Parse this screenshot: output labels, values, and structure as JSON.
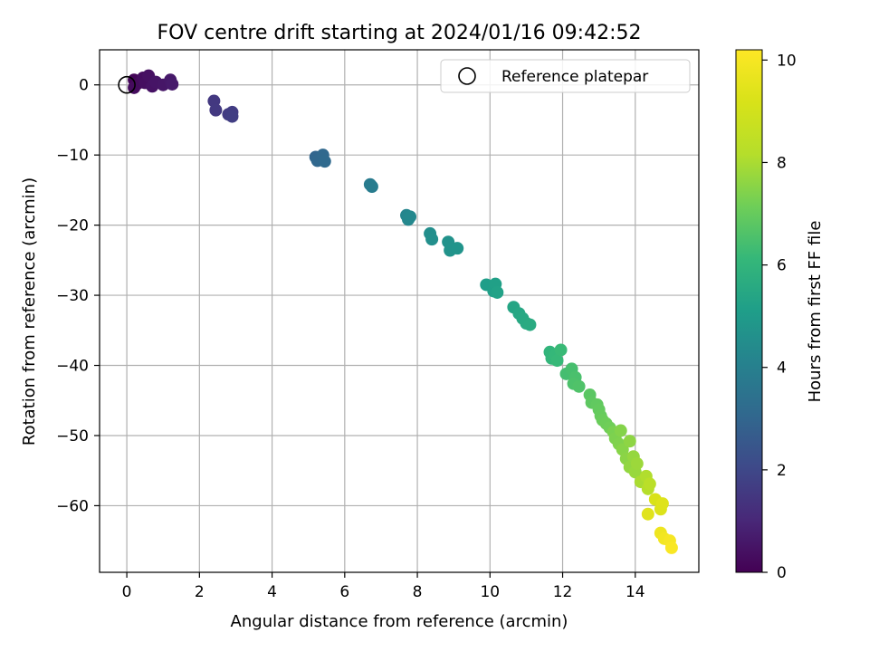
{
  "chart_data": {
    "type": "scatter",
    "title": "FOV centre drift starting at 2024/01/16 09:42:52",
    "xlabel": "Angular distance from reference (arcmin)",
    "ylabel": "Rotation from reference (arcmin)",
    "xlim": [
      -0.75,
      15.75
    ],
    "ylim": [
      -69.5,
      5
    ],
    "xticks": [
      "0",
      "2",
      "4",
      "6",
      "8",
      "10",
      "12",
      "14"
    ],
    "yticks": [
      "0",
      "−10",
      "−20",
      "−30",
      "−40",
      "−50",
      "−60"
    ],
    "grid": true,
    "legend": {
      "placement": "top-right",
      "entries": [
        "Reference platepar"
      ]
    },
    "reference_point": {
      "x": 0,
      "y": 0
    },
    "colorbar": {
      "label": "Hours from first FF file",
      "range": [
        0,
        10.2
      ],
      "ticks": [
        "0",
        "2",
        "4",
        "6",
        "8",
        "10"
      ],
      "colormap": "viridis"
    },
    "points": [
      {
        "x": 0.2,
        "y": 0.7,
        "c": 0.1
      },
      {
        "x": 0.3,
        "y": 0.2,
        "c": 0.2
      },
      {
        "x": 0.2,
        "y": -0.4,
        "c": 0.25
      },
      {
        "x": 0.45,
        "y": 1.0,
        "c": 0.3
      },
      {
        "x": 0.5,
        "y": 0.3,
        "c": 0.35
      },
      {
        "x": 0.6,
        "y": 1.3,
        "c": 0.4
      },
      {
        "x": 0.7,
        "y": -0.2,
        "c": 0.45
      },
      {
        "x": 0.8,
        "y": 0.4,
        "c": 0.5
      },
      {
        "x": 1.0,
        "y": 0.0,
        "c": 0.55
      },
      {
        "x": 1.2,
        "y": 0.7,
        "c": 0.6
      },
      {
        "x": 1.25,
        "y": 0.1,
        "c": 0.65
      },
      {
        "x": 2.4,
        "y": -2.3,
        "c": 1.5
      },
      {
        "x": 2.45,
        "y": -3.6,
        "c": 1.55
      },
      {
        "x": 2.8,
        "y": -4.2,
        "c": 1.6
      },
      {
        "x": 2.9,
        "y": -3.9,
        "c": 1.65
      },
      {
        "x": 2.9,
        "y": -4.5,
        "c": 1.7
      },
      {
        "x": 5.2,
        "y": -10.3,
        "c": 3.0
      },
      {
        "x": 5.25,
        "y": -10.8,
        "c": 3.05
      },
      {
        "x": 5.4,
        "y": -10.0,
        "c": 3.1
      },
      {
        "x": 5.45,
        "y": -10.9,
        "c": 3.15
      },
      {
        "x": 6.7,
        "y": -14.2,
        "c": 3.8
      },
      {
        "x": 6.75,
        "y": -14.5,
        "c": 3.85
      },
      {
        "x": 7.7,
        "y": -18.6,
        "c": 4.2
      },
      {
        "x": 7.75,
        "y": -19.2,
        "c": 4.25
      },
      {
        "x": 7.8,
        "y": -18.8,
        "c": 4.3
      },
      {
        "x": 8.35,
        "y": -21.2,
        "c": 4.5
      },
      {
        "x": 8.4,
        "y": -22.0,
        "c": 4.55
      },
      {
        "x": 8.85,
        "y": -22.4,
        "c": 4.65
      },
      {
        "x": 8.9,
        "y": -23.6,
        "c": 4.7
      },
      {
        "x": 9.1,
        "y": -23.3,
        "c": 4.75
      },
      {
        "x": 9.9,
        "y": -28.5,
        "c": 5.1
      },
      {
        "x": 10.1,
        "y": -29.4,
        "c": 5.15
      },
      {
        "x": 10.15,
        "y": -28.4,
        "c": 5.2
      },
      {
        "x": 10.2,
        "y": -29.6,
        "c": 5.25
      },
      {
        "x": 10.65,
        "y": -31.7,
        "c": 5.4
      },
      {
        "x": 10.8,
        "y": -32.6,
        "c": 5.45
      },
      {
        "x": 10.9,
        "y": -33.3,
        "c": 5.5
      },
      {
        "x": 11.0,
        "y": -34.0,
        "c": 5.55
      },
      {
        "x": 11.1,
        "y": -34.2,
        "c": 5.6
      },
      {
        "x": 11.65,
        "y": -38.1,
        "c": 6.0
      },
      {
        "x": 11.7,
        "y": -39.0,
        "c": 6.05
      },
      {
        "x": 11.8,
        "y": -38.5,
        "c": 6.1
      },
      {
        "x": 11.85,
        "y": -39.3,
        "c": 6.15
      },
      {
        "x": 11.95,
        "y": -37.8,
        "c": 6.2
      },
      {
        "x": 12.1,
        "y": -41.2,
        "c": 6.4
      },
      {
        "x": 12.25,
        "y": -40.5,
        "c": 6.45
      },
      {
        "x": 12.35,
        "y": -41.7,
        "c": 6.5
      },
      {
        "x": 12.3,
        "y": -42.6,
        "c": 6.55
      },
      {
        "x": 12.45,
        "y": -43.0,
        "c": 6.6
      },
      {
        "x": 12.75,
        "y": -44.2,
        "c": 6.8
      },
      {
        "x": 12.8,
        "y": -45.3,
        "c": 6.85
      },
      {
        "x": 12.95,
        "y": -45.6,
        "c": 6.9
      },
      {
        "x": 13.0,
        "y": -46.3,
        "c": 6.95
      },
      {
        "x": 13.05,
        "y": -47.2,
        "c": 7.0
      },
      {
        "x": 13.1,
        "y": -47.8,
        "c": 7.05
      },
      {
        "x": 13.2,
        "y": -48.3,
        "c": 7.1
      },
      {
        "x": 13.3,
        "y": -48.9,
        "c": 7.15
      },
      {
        "x": 13.4,
        "y": -49.5,
        "c": 7.3
      },
      {
        "x": 13.45,
        "y": -50.4,
        "c": 7.35
      },
      {
        "x": 13.55,
        "y": -51.2,
        "c": 7.4
      },
      {
        "x": 13.6,
        "y": -49.3,
        "c": 7.45
      },
      {
        "x": 13.65,
        "y": -52.0,
        "c": 7.5
      },
      {
        "x": 13.75,
        "y": -53.3,
        "c": 7.55
      },
      {
        "x": 13.85,
        "y": -50.8,
        "c": 7.6
      },
      {
        "x": 13.85,
        "y": -54.5,
        "c": 7.65
      },
      {
        "x": 13.95,
        "y": -53.0,
        "c": 7.7
      },
      {
        "x": 14.0,
        "y": -55.2,
        "c": 7.75
      },
      {
        "x": 14.05,
        "y": -54.0,
        "c": 7.8
      },
      {
        "x": 14.15,
        "y": -56.6,
        "c": 8.0
      },
      {
        "x": 14.3,
        "y": -55.8,
        "c": 8.1
      },
      {
        "x": 14.35,
        "y": -57.6,
        "c": 8.2
      },
      {
        "x": 14.4,
        "y": -56.9,
        "c": 8.3
      },
      {
        "x": 14.35,
        "y": -61.2,
        "c": 9.4
      },
      {
        "x": 14.55,
        "y": -59.1,
        "c": 9.2
      },
      {
        "x": 14.7,
        "y": -60.5,
        "c": 9.3
      },
      {
        "x": 14.75,
        "y": -59.7,
        "c": 9.35
      },
      {
        "x": 14.7,
        "y": -63.9,
        "c": 9.8
      },
      {
        "x": 14.8,
        "y": -64.7,
        "c": 9.9
      },
      {
        "x": 14.95,
        "y": -65.0,
        "c": 10.0
      },
      {
        "x": 15.0,
        "y": -66.0,
        "c": 10.1
      }
    ]
  }
}
